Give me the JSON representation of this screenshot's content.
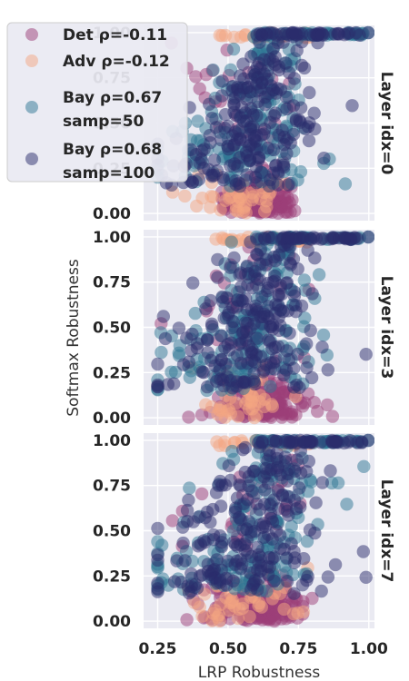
{
  "chart_data": {
    "type": "scatter",
    "xlabel": "LRP Robustness",
    "ylabel": "Softmax Robustness",
    "x_ticks": [
      "0.25",
      "0.50",
      "0.75",
      "1.00"
    ],
    "y_ticks": [
      "0.00",
      "0.25",
      "0.50",
      "0.75",
      "1.00"
    ],
    "xlim": [
      0.2,
      1.02
    ],
    "ylim": [
      -0.04,
      1.04
    ],
    "grid": true,
    "legend_position": "top-left",
    "series": [
      {
        "key": "det",
        "name": "Det ρ=-0.11",
        "legend_lines": [
          "Det ρ=-0.11"
        ],
        "color": "#9c3d77"
      },
      {
        "key": "adv",
        "name": "Adv ρ=-0.12",
        "legend_lines": [
          "Adv ρ=-0.12"
        ],
        "color": "#f3a582"
      },
      {
        "key": "bay50",
        "name": "Bay ρ=0.67 samp=50",
        "legend_lines": [
          "Bay ρ=0.67",
          "samp=50"
        ],
        "color": "#2e7593"
      },
      {
        "key": "bay100",
        "name": "Bay ρ=0.68 samp=100",
        "legend_lines": [
          "Bay ρ=0.68",
          "samp=100"
        ],
        "color": "#2a2c6b"
      }
    ],
    "panels": [
      {
        "label": "Layer idx=0",
        "layer": 0
      },
      {
        "label": "Layer idx=3",
        "layer": 3
      },
      {
        "label": "Layer idx=7",
        "layer": 7
      }
    ]
  }
}
